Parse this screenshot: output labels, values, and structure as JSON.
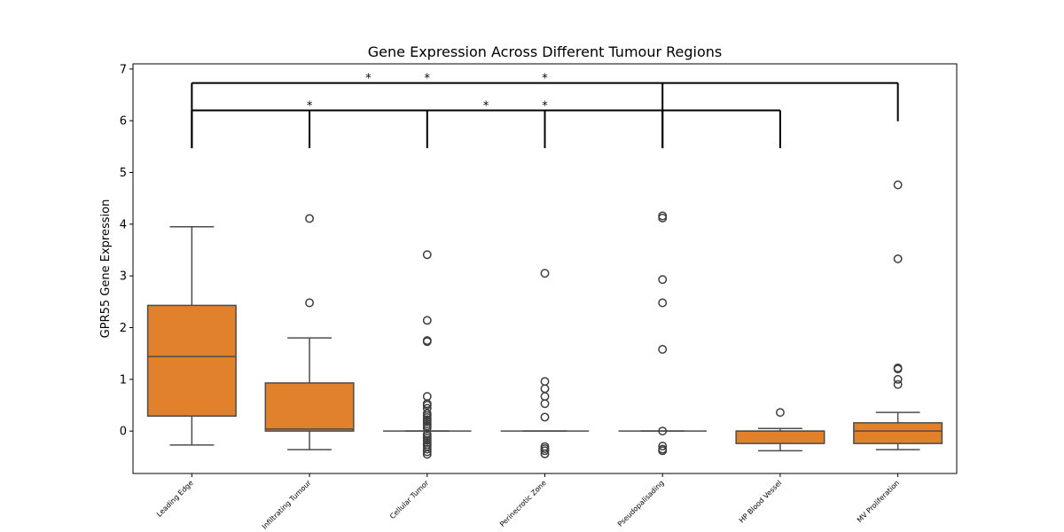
{
  "chart_data": {
    "type": "box",
    "title": "Gene Expression Across Different Tumour Regions",
    "xlabel": "",
    "ylabel": "GPR55 Gene Expression",
    "ylim": [
      -0.82,
      7.1
    ],
    "yticks": [
      0,
      1,
      2,
      3,
      4,
      5,
      6,
      7
    ],
    "grid": false,
    "box_color": "#e1812c",
    "line_color": "#4d4d4d",
    "categories": [
      "Leading Edge",
      "Infiltrating Tumour",
      "Cellular Tumor",
      "Perinecrotic Zone",
      "Pseudopalisading",
      "HP Blood Vessel",
      "MV Proliferation"
    ],
    "boxes": [
      {
        "q1": 0.29,
        "median": 1.44,
        "q3": 2.43,
        "whisker_low": -0.27,
        "whisker_high": 3.95,
        "outliers": []
      },
      {
        "q1": 0.0,
        "median": 0.04,
        "q3": 0.93,
        "whisker_low": -0.36,
        "whisker_high": 1.8,
        "outliers": [
          2.48,
          4.11
        ]
      },
      {
        "q1": 0.0,
        "median": 0.0,
        "q3": 0.0,
        "whisker_low": 0.0,
        "whisker_high": 0.0,
        "outliers": [
          3.41,
          2.14,
          1.75,
          1.73,
          0.67,
          0.53,
          0.5,
          0.44,
          0.34,
          0.3,
          0.26,
          0.22,
          0.18,
          0.14,
          0.1,
          0.06,
          -0.06,
          -0.1,
          -0.14,
          -0.18,
          -0.22,
          -0.26,
          -0.3,
          -0.35,
          -0.4,
          -0.45
        ]
      },
      {
        "q1": 0.0,
        "median": 0.0,
        "q3": 0.0,
        "whisker_low": 0.0,
        "whisker_high": 0.0,
        "outliers": [
          3.05,
          0.96,
          0.82,
          0.67,
          0.53,
          0.27,
          -0.3,
          -0.34,
          -0.38,
          -0.44
        ]
      },
      {
        "q1": 0.0,
        "median": 0.0,
        "q3": 0.0,
        "whisker_low": 0.0,
        "whisker_high": 0.0,
        "outliers": [
          4.16,
          4.12,
          2.93,
          2.48,
          1.58,
          0.0,
          -0.29,
          -0.35,
          -0.38
        ]
      },
      {
        "q1": -0.24,
        "median": 0.0,
        "q3": 0.0,
        "whisker_low": -0.38,
        "whisker_high": 0.05,
        "outliers": [
          0.36
        ]
      },
      {
        "q1": -0.24,
        "median": 0.0,
        "q3": 0.16,
        "whisker_low": -0.36,
        "whisker_high": 0.36,
        "outliers": [
          4.76,
          3.33,
          1.22,
          1.2,
          1.0,
          0.9
        ]
      }
    ],
    "annotations": [
      {
        "from": 0,
        "to": 6,
        "y": 6.73,
        "left_bottom": 5.47,
        "right_bottom": 5.99,
        "ticks": [
          4
        ],
        "stars_at": [
          1.5,
          2,
          3
        ]
      },
      {
        "from": 0,
        "to": 5,
        "y": 6.2,
        "left_bottom": 5.47,
        "right_bottom": 5.47,
        "ticks": [
          1,
          2,
          3,
          4
        ],
        "stars_at": [
          1,
          2.5,
          3
        ]
      }
    ],
    "star_text": "*"
  }
}
